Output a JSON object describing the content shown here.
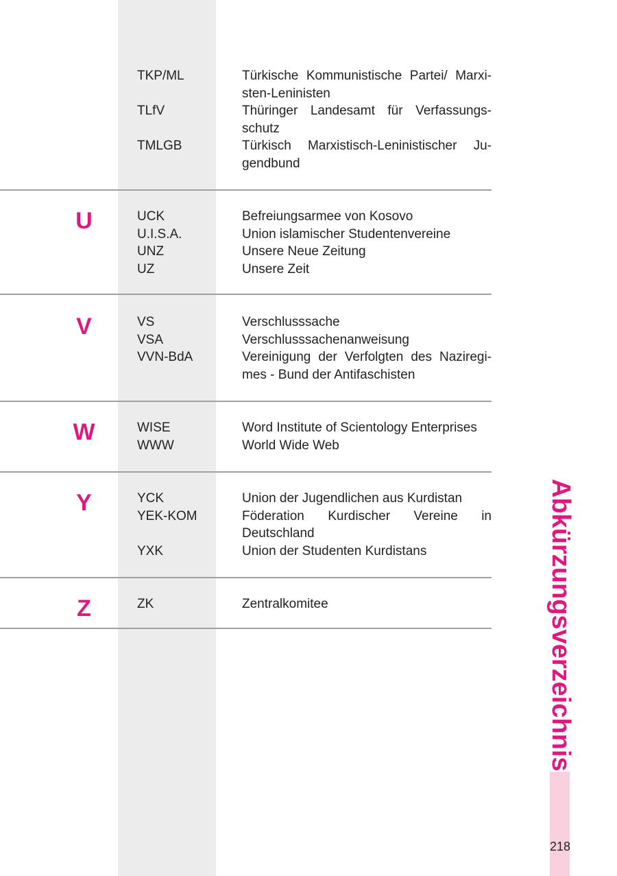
{
  "header": {
    "title": "Abkürzungsverzeichnis",
    "page_number": "218"
  },
  "sections": [
    {
      "entries": [
        {
          "abbr": "TKP/ML",
          "lines": [
            "Türkische Kommunistische Partei/ Marxi-",
            "sten-Leninisten"
          ]
        },
        {
          "abbr": "TLfV",
          "lines": [
            "Thüringer Landesamt für Verfassungs-",
            "schutz"
          ]
        },
        {
          "abbr": "TMLGB",
          "lines": [
            "Türkisch Marxistisch-Leninistischer Ju-",
            "gendbund"
          ]
        }
      ]
    },
    {
      "letter": "U",
      "entries": [
        {
          "abbr": "UCK",
          "lines": [
            "Befreiungsarmee von Kosovo"
          ]
        },
        {
          "abbr": "U.I.S.A.",
          "lines": [
            "Union islamischer Studentenvereine"
          ]
        },
        {
          "abbr": "UNZ",
          "lines": [
            "Unsere Neue Zeitung"
          ]
        },
        {
          "abbr": "UZ",
          "lines": [
            "Unsere Zeit"
          ]
        }
      ]
    },
    {
      "letter": "V",
      "entries": [
        {
          "abbr": "VS",
          "lines": [
            "Verschlusssache"
          ]
        },
        {
          "abbr": "VSA",
          "lines": [
            "Verschlusssachenanweisung"
          ]
        },
        {
          "abbr": "VVN-BdA",
          "lines": [
            "Vereinigung der Verfolgten des Naziregi-",
            "mes - Bund der Antifaschisten"
          ]
        }
      ]
    },
    {
      "letter": "W",
      "entries": [
        {
          "abbr": "WISE",
          "lines": [
            "Word Institute of Scientology Enterprises"
          ]
        },
        {
          "abbr": "WWW",
          "lines": [
            "World Wide Web"
          ]
        }
      ]
    },
    {
      "letter": "Y",
      "entries": [
        {
          "abbr": "YCK",
          "lines": [
            "Union der Jugendlichen aus Kurdistan"
          ]
        },
        {
          "abbr": "YEK-KOM",
          "lines": [
            "Föderation Kurdischer Vereine in",
            "Deutschland"
          ]
        },
        {
          "abbr": "YXK",
          "lines": [
            "Union der Studenten Kurdistans"
          ]
        }
      ]
    },
    {
      "letter": "Z",
      "entries": [
        {
          "abbr": "ZK",
          "lines": [
            "Zentralkomitee"
          ]
        }
      ]
    }
  ]
}
